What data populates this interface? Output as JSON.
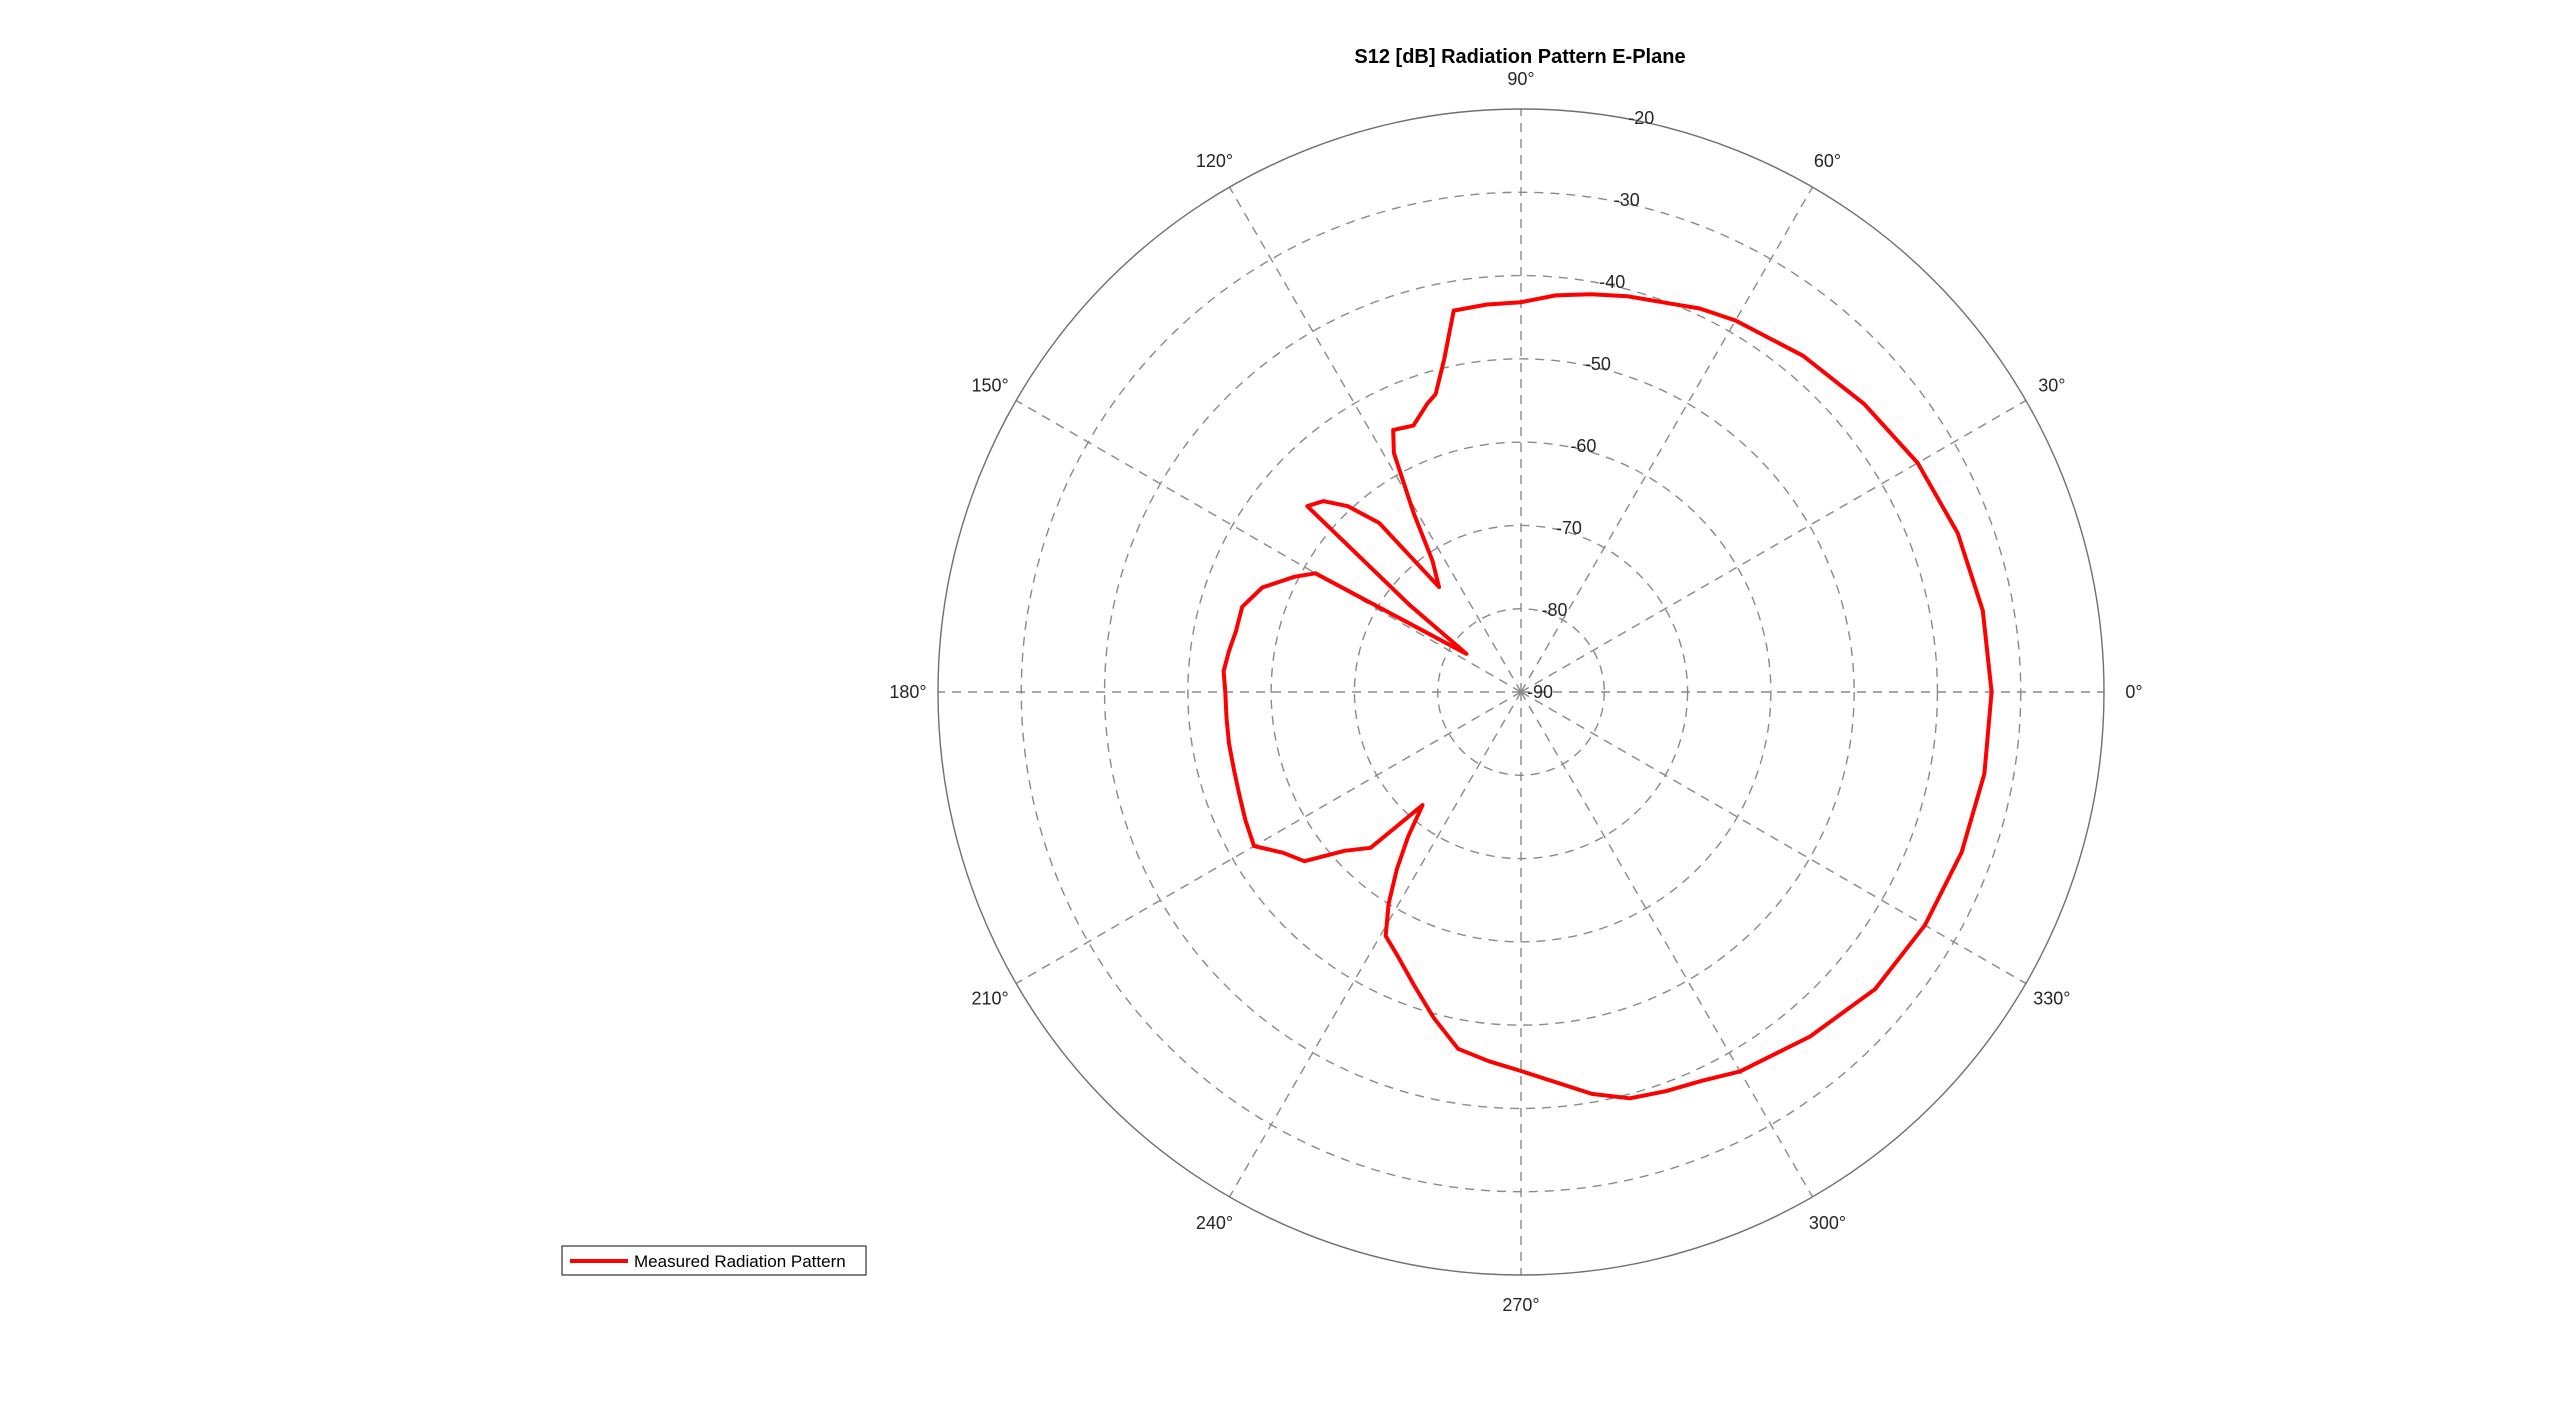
{
  "chart_data": {
    "type": "polar-line",
    "title": "S12 [dB] Radiation Pattern E-Plane",
    "angle_unit": "degrees",
    "theta_zero_location": "right",
    "theta_direction": "counterclockwise",
    "rlim": [
      -90,
      -20
    ],
    "r_ticks": [
      -90,
      -80,
      -70,
      -60,
      -50,
      -40,
      -30,
      -20
    ],
    "r_tick_labels": [
      "-90",
      "-80",
      "-70",
      "-60",
      "-50",
      "-40",
      "-30",
      "-20"
    ],
    "theta_ticks": [
      0,
      30,
      60,
      90,
      120,
      150,
      180,
      210,
      240,
      270,
      300,
      330
    ],
    "theta_tick_labels": [
      "0°",
      "30°",
      "60°",
      "90°",
      "120°",
      "150°",
      "180°",
      "210°",
      "240°",
      "270°",
      "300°",
      "330°"
    ],
    "grid": true,
    "legend_position": "bottom-left",
    "series": [
      {
        "name": "Measured Radiation Pattern",
        "color": "#ff0000",
        "theta": [
          0,
          10,
          20,
          30,
          40,
          50,
          60,
          65,
          70,
          75,
          80,
          85,
          90,
          95,
          100,
          103,
          106,
          108,
          112,
          116,
          118,
          121,
          124,
          128,
          130,
          133,
          136,
          139,
          142,
          145,
          150,
          153,
          158,
          163,
          168,
          172,
          176,
          180,
          185,
          190,
          195,
          200,
          205,
          210,
          214,
          218,
          222,
          226,
          229,
          232,
          235,
          238,
          241,
          245,
          250,
          255,
          260,
          265,
          270,
          275,
          280,
          285,
          290,
          295,
          300,
          310,
          320,
          330,
          340,
          350
        ],
        "r": [
          -33.5,
          -33.7,
          -34.2,
          -35,
          -36.2,
          -37.3,
          -38.5,
          -39.2,
          -40.2,
          -40.8,
          -41.5,
          -42.2,
          -43.2,
          -43.3,
          -43.5,
          -49,
          -52.8,
          -53.6,
          -55.5,
          -55,
          -57.5,
          -65,
          -71,
          -74,
          -63.5,
          -59.5,
          -57,
          -56,
          -73,
          -82,
          -61.5,
          -59.5,
          -56.5,
          -55,
          -55,
          -54.6,
          -54.2,
          -54.5,
          -54.5,
          -54.4,
          -54.3,
          -54,
          -53.5,
          -53,
          -55.5,
          -57,
          -61.5,
          -64,
          -72,
          -68,
          -64,
          -60,
          -56.5,
          -55,
          -52.5,
          -49.5,
          -46.5,
          -45.5,
          -44.5,
          -43,
          -41,
          -39.5,
          -39,
          -38.5,
          -37.4,
          -36,
          -34.5,
          -34,
          -33.7,
          -33.5
        ]
      }
    ]
  }
}
